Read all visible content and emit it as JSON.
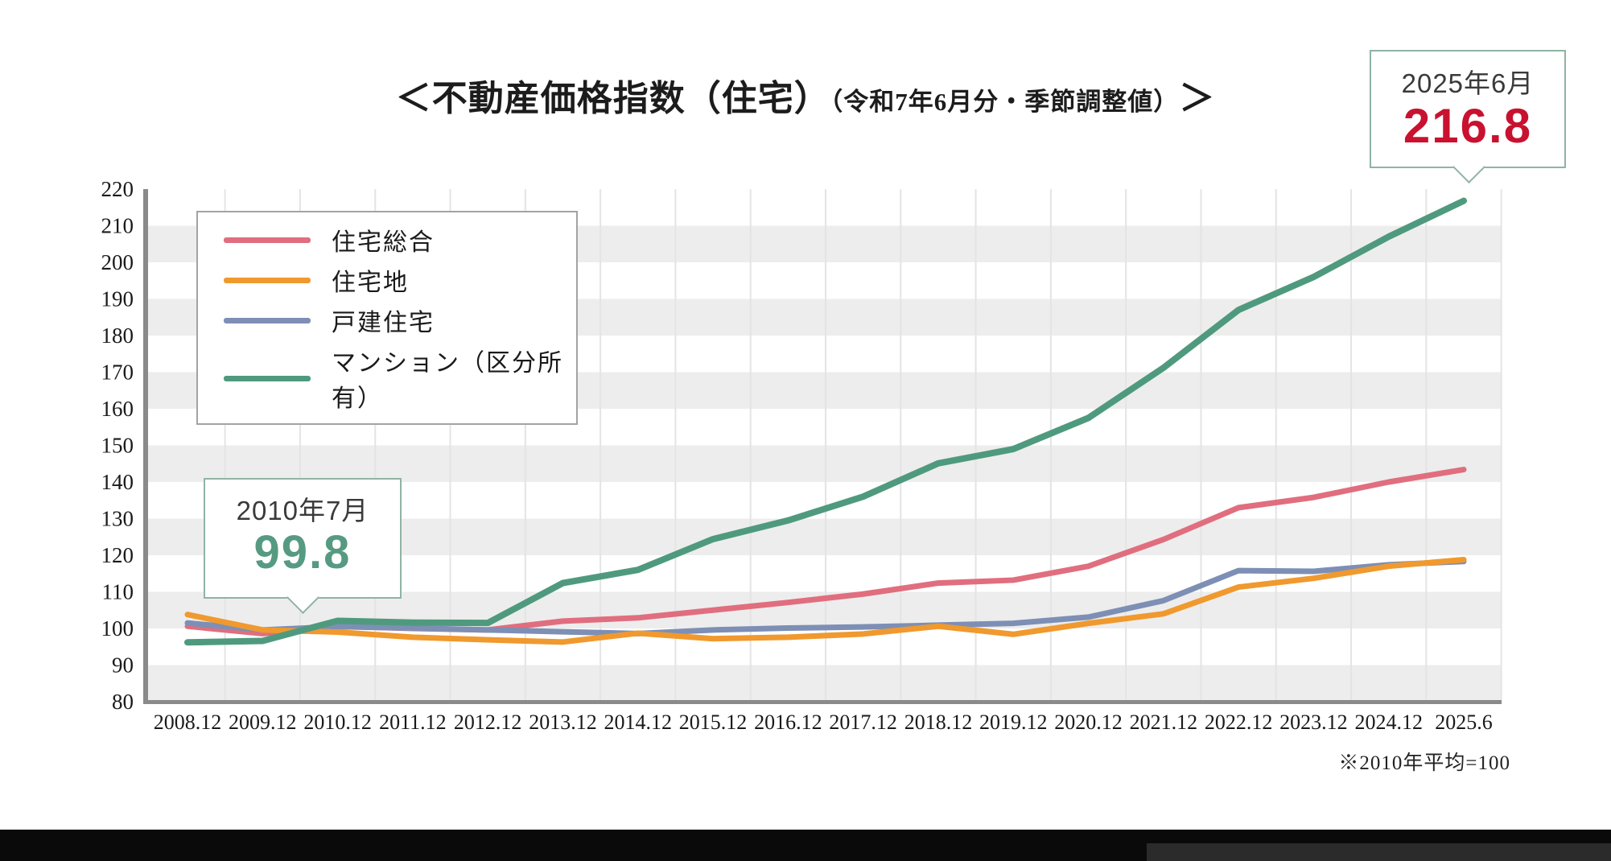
{
  "title": {
    "main": "＜不動産価格指数（住宅）",
    "sub": "（令和7年6月分・季節調整値）",
    "close": "＞"
  },
  "callout_start": {
    "label": "2010年7月",
    "value": "99.8"
  },
  "callout_latest": {
    "label": "2025年6月",
    "value": "216.8"
  },
  "footnote": "※2010年平均=100",
  "colors": {
    "accent_red": "#c8122f",
    "accent_green_text": "#569a82",
    "callout_border": "#8fb3a4",
    "stripe_gray": "#ededed",
    "gridline": "#e4e4e4",
    "axis": "#8a8a8a",
    "axis_text": "#1a1a1a"
  },
  "chart_data": {
    "type": "line",
    "title": "不動産価格指数（住宅）（令和7年6月分・季節調整値）",
    "xlabel": "",
    "ylabel": "",
    "ylim": [
      80,
      220
    ],
    "ytick_step": 10,
    "grid": "vertical gridlines + alternating horizontal stripe bands",
    "legend_position": "top-left",
    "categories": [
      "2008.12",
      "2009.12",
      "2010.12",
      "2011.12",
      "2012.12",
      "2013.12",
      "2014.12",
      "2015.12",
      "2016.12",
      "2017.12",
      "2018.12",
      "2019.12",
      "2020.12",
      "2021.12",
      "2022.12",
      "2023.12",
      "2024.12",
      "2025.6"
    ],
    "series": [
      {
        "name": "住宅総合",
        "color": "#e06e7e",
        "values": [
          100.6,
          98.6,
          100.6,
          100.0,
          99.6,
          102.0,
          102.9,
          105.0,
          107.1,
          109.4,
          112.4,
          113.2,
          117.0,
          124.3,
          133.0,
          135.8,
          140.0,
          143.4
        ]
      },
      {
        "name": "戸建住宅",
        "color": "#7d8fb5",
        "values": [
          101.5,
          99.6,
          100.5,
          100.1,
          99.6,
          99.1,
          98.6,
          99.6,
          100.1,
          100.4,
          100.9,
          101.4,
          103.1,
          107.6,
          115.8,
          115.6,
          117.4,
          118.3
        ]
      },
      {
        "name": "住宅地",
        "color": "#f0992e",
        "values": [
          103.8,
          99.6,
          99.0,
          97.6,
          96.9,
          96.3,
          98.7,
          97.2,
          97.6,
          98.5,
          100.6,
          98.4,
          101.4,
          104.0,
          111.3,
          113.7,
          117.0,
          118.8
        ]
      },
      {
        "name": "マンション（区分所有）",
        "color": "#4f9a7e",
        "values": [
          96.2,
          96.6,
          102.1,
          101.6,
          101.5,
          112.4,
          116.0,
          124.4,
          129.5,
          136.0,
          145.1,
          149.0,
          157.5,
          171.2,
          187.0,
          196.0,
          207.0,
          216.8
        ]
      }
    ],
    "legend_order": [
      "住宅総合",
      "住宅地",
      "戸建住宅",
      "マンション（区分所有）"
    ],
    "annotations": [
      {
        "text": "2010年7月 99.8",
        "points_to": "2010.7"
      },
      {
        "text": "2025年6月 216.8",
        "points_to": "2025.6"
      }
    ]
  }
}
